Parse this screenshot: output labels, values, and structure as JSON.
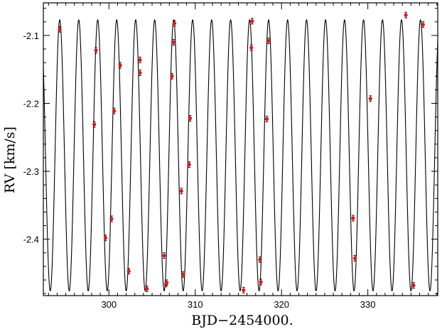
{
  "chart_data": {
    "type": "scatter",
    "title": "",
    "xlabel": "BJD−2454000.",
    "ylabel": "RV [km/s]",
    "xlim": [
      292.4,
      338.1
    ],
    "ylim": [
      -2.483,
      -2.052
    ],
    "xticks": [
      300,
      310,
      320,
      330
    ],
    "xtick_labels": [
      "300",
      "310",
      "320",
      "330"
    ],
    "yticks": [
      -2.1,
      -2.2,
      -2.3,
      -2.4
    ],
    "ytick_labels": [
      "-2.1",
      "-2.2",
      "-2.3",
      "-2.4"
    ],
    "grid": false,
    "legend": "none",
    "model_curve": {
      "shape": "sinusoid",
      "period_days": 2.2,
      "y_max": -2.077,
      "y_min": -2.476,
      "x_at_max": 294.3,
      "color": "#000000"
    },
    "series": [
      {
        "marker_color": "#e8141a",
        "x": [
          294.3,
          298.3,
          298.5,
          299.6,
          300.3,
          300.6,
          301.3,
          302.3,
          303.6,
          303.6,
          304.4,
          306.4,
          306.6,
          306.7,
          307.3,
          307.5,
          307.6,
          308.4,
          308.6,
          309.3,
          309.4,
          315.6,
          316.5,
          316.6,
          317.5,
          317.6,
          318.3,
          318.5,
          328.3,
          328.5,
          330.3,
          334.4,
          335.3,
          336.4
        ],
        "y": [
          -2.091,
          -2.231,
          -2.122,
          -2.398,
          -2.37,
          -2.211,
          -2.144,
          -2.447,
          -2.136,
          -2.155,
          -2.473,
          -2.424,
          -2.466,
          -2.464,
          -2.16,
          -2.11,
          -2.082,
          -2.329,
          -2.452,
          -2.29,
          -2.222,
          -2.475,
          -2.118,
          -2.079,
          -2.43,
          -2.463,
          -2.223,
          -2.108,
          -2.369,
          -2.428,
          -2.193,
          -2.07,
          -2.468,
          -2.084
        ],
        "yerr": [
          0.003,
          0.003,
          0.003,
          0.003,
          0.003,
          0.003,
          0.003,
          0.003,
          0.003,
          0.003,
          0.003,
          0.003,
          0.003,
          0.003,
          0.003,
          0.003,
          0.003,
          0.003,
          0.003,
          0.003,
          0.003,
          0.003,
          0.003,
          0.003,
          0.003,
          0.003,
          0.003,
          0.003,
          0.003,
          0.003,
          0.003,
          0.003,
          0.003,
          0.003
        ]
      }
    ]
  }
}
